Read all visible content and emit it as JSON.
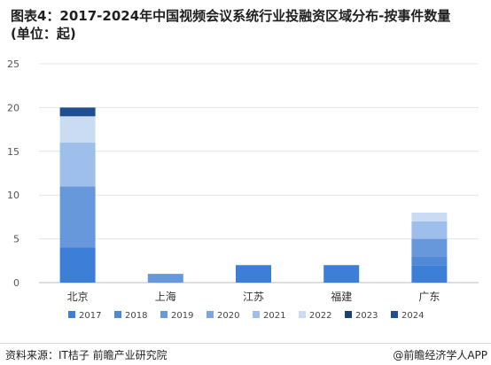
{
  "header": {
    "title": "图表4：2017-2024年中国视频会议系统行业投融资区域分布-按事件数量",
    "subtitle": "(单位：起)"
  },
  "footer": {
    "source": "资料来源：IT桔子 前瞻产业研究院",
    "credit": "@前瞻经济学人APP"
  },
  "chart_data": {
    "type": "bar",
    "stacked": true,
    "categories": [
      "北京",
      "上海",
      "江苏",
      "福建",
      "广东"
    ],
    "ylim": [
      0,
      25
    ],
    "yticks": [
      0,
      5,
      10,
      15,
      20,
      25
    ],
    "grid": true,
    "legend_position": "bottom",
    "series": [
      {
        "name": "2017",
        "color": "#3d7fd6",
        "values": [
          4,
          0,
          2,
          2,
          2
        ]
      },
      {
        "name": "2018",
        "color": "#5089d5",
        "values": [
          0,
          0,
          0,
          0,
          1
        ]
      },
      {
        "name": "2019",
        "color": "#6798dc",
        "values": [
          7,
          1,
          0,
          0,
          2
        ]
      },
      {
        "name": "2020",
        "color": "#7aa6e2",
        "values": [
          0,
          0,
          0,
          0,
          0
        ]
      },
      {
        "name": "2021",
        "color": "#9ebfeb",
        "values": [
          5,
          0,
          0,
          0,
          2
        ]
      },
      {
        "name": "2022",
        "color": "#c9dcf4",
        "values": [
          3,
          0,
          0,
          0,
          1
        ]
      },
      {
        "name": "2023",
        "color": "#1c3f74",
        "values": [
          0,
          0,
          0,
          0,
          0
        ]
      },
      {
        "name": "2024",
        "color": "#1d4f91",
        "values": [
          1,
          0,
          0,
          0,
          0
        ]
      }
    ]
  }
}
